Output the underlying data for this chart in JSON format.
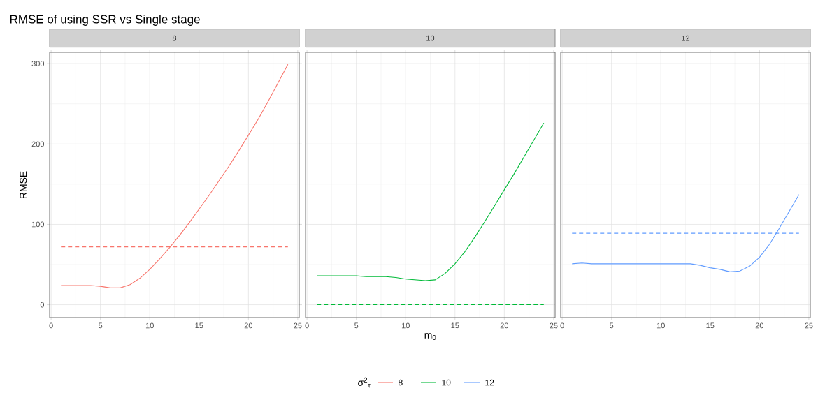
{
  "chart_data": [
    {
      "type": "line",
      "title": "RMSE of using SSR vs Single stage",
      "subtitle": "8",
      "ylabel": "RMSE",
      "legend_title": "σ$^{2}$$_{τ}$",
      "legend": "bottom",
      "grid": true,
      "x": [
        1,
        2,
        3,
        4,
        5,
        6,
        7,
        8,
        9,
        10,
        11,
        12,
        13,
        14,
        15,
        16,
        17,
        18,
        19,
        20,
        21,
        22,
        23,
        24
      ],
      "xlim": [
        -0.15,
        25.15
      ],
      "xticks": [
        0,
        5,
        10,
        15,
        20,
        25
      ],
      "ylim": [
        -16,
        314
      ],
      "yticks": [
        0,
        100,
        200,
        300
      ],
      "series": [
        {
          "name": "8",
          "color": "#f8766d",
          "values": [
            24,
            24,
            24,
            24,
            23,
            21,
            21,
            25,
            33,
            44,
            57,
            71,
            86,
            102,
            119,
            136,
            154,
            172,
            191,
            211,
            231,
            253,
            276,
            299
          ]
        },
        {
          "color": "#f8766d",
          "line_style": "dashed",
          "values": [
            72,
            72,
            72,
            72,
            72,
            72,
            72,
            72,
            72,
            72,
            72,
            72,
            72,
            72,
            72,
            72,
            72,
            72,
            72,
            72,
            72,
            72,
            72,
            72
          ]
        }
      ]
    },
    {
      "type": "line",
      "subtitle": "10",
      "xlabel": "m$_{0}$",
      "legend": "bottom",
      "grid": true,
      "tick_labels": "x",
      "x": [
        1,
        2,
        3,
        4,
        5,
        6,
        7,
        8,
        9,
        10,
        11,
        12,
        13,
        14,
        15,
        16,
        17,
        18,
        19,
        20,
        21,
        22,
        23,
        24
      ],
      "xlim": [
        -0.15,
        25.15
      ],
      "xticks": [
        0,
        5,
        10,
        15,
        20,
        25
      ],
      "ylim": [
        -16,
        314
      ],
      "yticks": [
        0,
        100,
        200,
        300
      ],
      "series": [
        {
          "name": "10",
          "color": "#00ba38",
          "values": [
            36,
            36,
            36,
            36,
            36,
            35,
            35,
            35,
            34,
            32,
            31,
            30,
            31,
            39,
            51,
            66,
            84,
            103,
            123,
            143,
            163,
            184,
            205,
            226
          ]
        },
        {
          "color": "#00ba38",
          "line_style": "dashed",
          "values": [
            0,
            0,
            0,
            0,
            0,
            0,
            0,
            0,
            0,
            0,
            0,
            0,
            0,
            0,
            0,
            0,
            0,
            0,
            0,
            0,
            0,
            0,
            0,
            0
          ]
        }
      ]
    },
    {
      "type": "line",
      "subtitle": "12",
      "legend": "bottom",
      "grid": true,
      "tick_labels": "x",
      "x": [
        1,
        2,
        3,
        4,
        5,
        6,
        7,
        8,
        9,
        10,
        11,
        12,
        13,
        14,
        15,
        16,
        17,
        18,
        19,
        20,
        21,
        22,
        23,
        24
      ],
      "xlim": [
        -0.15,
        25.15
      ],
      "xticks": [
        0,
        5,
        10,
        15,
        20,
        25
      ],
      "ylim": [
        -16,
        314
      ],
      "yticks": [
        0,
        100,
        200,
        300
      ],
      "series": [
        {
          "name": "12",
          "color": "#619cff",
          "values": [
            51,
            52,
            51,
            51,
            51,
            51,
            51,
            51,
            51,
            51,
            51,
            51,
            51,
            49,
            46,
            44,
            41,
            42,
            48,
            59,
            75,
            95,
            116,
            137
          ]
        },
        {
          "color": "#619cff",
          "line_style": "dashed",
          "values": [
            89,
            89,
            89,
            89,
            89,
            89,
            89,
            89,
            89,
            89,
            89,
            89,
            89,
            89,
            89,
            89,
            89,
            89,
            89,
            89,
            89,
            89,
            89,
            89
          ]
        }
      ]
    }
  ]
}
